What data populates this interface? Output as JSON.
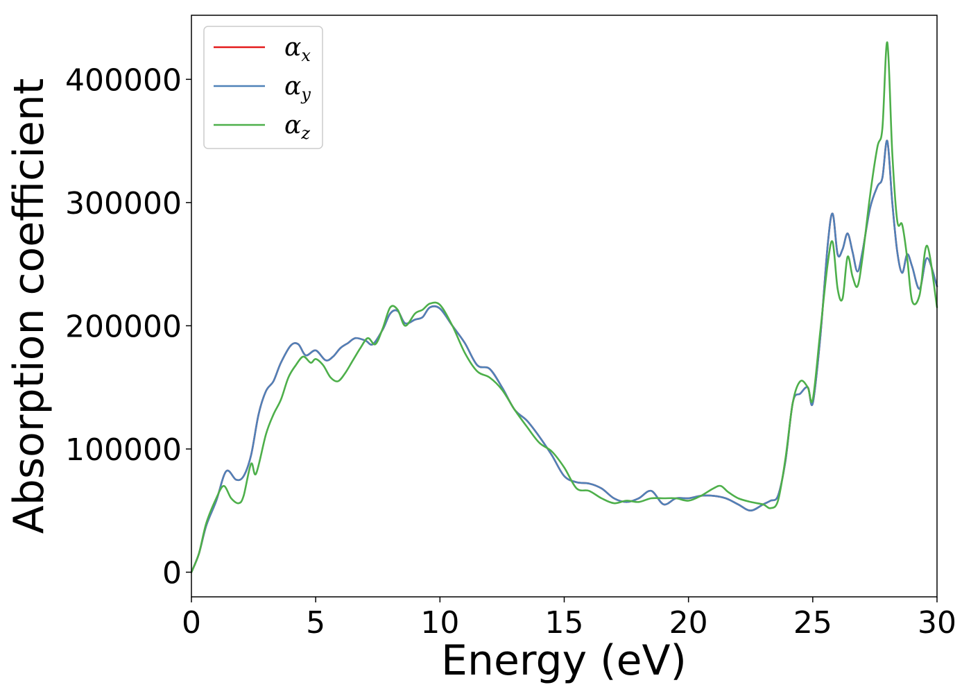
{
  "chart_data": {
    "type": "line",
    "title": "",
    "xlabel": "Energy (eV)",
    "ylabel": "Absorption coefficient",
    "xlim": [
      0,
      30
    ],
    "ylim": [
      -20000,
      452000
    ],
    "xticks": [
      0,
      5,
      10,
      15,
      20,
      25,
      30
    ],
    "yticks": [
      0,
      100000,
      200000,
      300000,
      400000
    ],
    "xtick_labels": [
      "0",
      "5",
      "10",
      "15",
      "20",
      "25",
      "30"
    ],
    "ytick_labels": [
      "0",
      "100000",
      "200000",
      "300000",
      "400000"
    ],
    "grid": false,
    "legend_position": "top-left",
    "series": [
      {
        "name": "αx",
        "label_base": "α",
        "label_sub": "x",
        "color": "#e41a1c",
        "x": [
          0,
          0.3,
          0.6,
          1.0,
          1.4,
          1.8,
          2.1,
          2.4,
          2.7,
          3.0,
          3.3,
          3.6,
          4.0,
          4.3,
          4.6,
          5.0,
          5.4,
          5.7,
          6.0,
          6.3,
          6.6,
          7.0,
          7.3,
          7.7,
          8.0,
          8.3,
          8.6,
          9.0,
          9.3,
          9.6,
          10.0,
          10.5,
          11.0,
          11.5,
          12.0,
          12.5,
          13.0,
          13.5,
          14.0,
          14.5,
          15.0,
          15.5,
          16.0,
          16.5,
          17.0,
          17.5,
          18.0,
          18.5,
          19.0,
          19.5,
          20.0,
          20.5,
          21.0,
          21.5,
          22.0,
          22.5,
          23.0,
          23.3,
          23.6,
          23.9,
          24.2,
          24.5,
          24.8,
          25.0,
          25.3,
          25.6,
          25.8,
          26.0,
          26.2,
          26.4,
          26.6,
          26.8,
          27.0,
          27.3,
          27.6,
          27.8,
          28.0,
          28.2,
          28.4,
          28.6,
          28.8,
          29.0,
          29.3,
          29.6,
          30.0
        ],
        "y": [
          0,
          15000,
          38000,
          58000,
          82000,
          75000,
          78000,
          95000,
          128000,
          147000,
          155000,
          170000,
          184000,
          185000,
          176000,
          180000,
          172000,
          175000,
          182000,
          186000,
          190000,
          188000,
          185000,
          197000,
          210000,
          212000,
          202000,
          205000,
          207000,
          215000,
          214000,
          200000,
          186000,
          168000,
          165000,
          150000,
          132000,
          123000,
          110000,
          95000,
          78000,
          73000,
          72000,
          68000,
          60000,
          57000,
          60000,
          66000,
          55000,
          60000,
          60000,
          62000,
          62000,
          60000,
          55000,
          50000,
          55000,
          58000,
          62000,
          90000,
          138000,
          145000,
          150000,
          137000,
          190000,
          265000,
          291000,
          258000,
          262000,
          275000,
          260000,
          244000,
          260000,
          295000,
          313000,
          320000,
          350000,
          300000,
          260000,
          243000,
          258000,
          248000,
          230000,
          255000,
          232000
        ]
      },
      {
        "name": "αy",
        "label_base": "α",
        "label_sub": "y",
        "color": "#4f81b8",
        "x": [
          0,
          0.3,
          0.6,
          1.0,
          1.4,
          1.8,
          2.1,
          2.4,
          2.7,
          3.0,
          3.3,
          3.6,
          4.0,
          4.3,
          4.6,
          5.0,
          5.4,
          5.7,
          6.0,
          6.3,
          6.6,
          7.0,
          7.3,
          7.7,
          8.0,
          8.3,
          8.6,
          9.0,
          9.3,
          9.6,
          10.0,
          10.5,
          11.0,
          11.5,
          12.0,
          12.5,
          13.0,
          13.5,
          14.0,
          14.5,
          15.0,
          15.5,
          16.0,
          16.5,
          17.0,
          17.5,
          18.0,
          18.5,
          19.0,
          19.5,
          20.0,
          20.5,
          21.0,
          21.5,
          22.0,
          22.5,
          23.0,
          23.3,
          23.6,
          23.9,
          24.2,
          24.5,
          24.8,
          25.0,
          25.3,
          25.6,
          25.8,
          26.0,
          26.2,
          26.4,
          26.6,
          26.8,
          27.0,
          27.3,
          27.6,
          27.8,
          28.0,
          28.2,
          28.4,
          28.6,
          28.8,
          29.0,
          29.3,
          29.6,
          30.0
        ],
        "y": [
          0,
          15000,
          38000,
          58000,
          82000,
          75000,
          78000,
          95000,
          128000,
          147000,
          155000,
          170000,
          184000,
          185000,
          176000,
          180000,
          172000,
          175000,
          182000,
          186000,
          190000,
          188000,
          185000,
          197000,
          210000,
          212000,
          202000,
          205000,
          207000,
          215000,
          214000,
          200000,
          186000,
          168000,
          165000,
          150000,
          132000,
          123000,
          110000,
          95000,
          78000,
          73000,
          72000,
          68000,
          60000,
          57000,
          60000,
          66000,
          55000,
          60000,
          60000,
          62000,
          62000,
          60000,
          55000,
          50000,
          55000,
          58000,
          62000,
          90000,
          138000,
          145000,
          150000,
          137000,
          190000,
          265000,
          291000,
          258000,
          262000,
          275000,
          260000,
          244000,
          260000,
          295000,
          313000,
          320000,
          350000,
          300000,
          260000,
          243000,
          258000,
          248000,
          230000,
          255000,
          232000
        ]
      },
      {
        "name": "αz",
        "label_base": "α",
        "label_sub": "z",
        "color": "#4daf4a",
        "x": [
          0,
          0.3,
          0.6,
          1.0,
          1.3,
          1.6,
          1.9,
          2.1,
          2.4,
          2.6,
          3.0,
          3.3,
          3.6,
          3.9,
          4.2,
          4.5,
          4.8,
          5.0,
          5.3,
          5.6,
          5.9,
          6.2,
          6.5,
          6.8,
          7.1,
          7.4,
          7.7,
          8.0,
          8.3,
          8.6,
          9.0,
          9.3,
          9.6,
          10.0,
          10.5,
          11.0,
          11.5,
          12.0,
          12.5,
          13.0,
          13.5,
          14.0,
          14.5,
          15.0,
          15.5,
          16.0,
          16.5,
          17.0,
          17.5,
          18.0,
          18.5,
          19.0,
          19.5,
          20.0,
          20.5,
          21.0,
          21.3,
          21.6,
          22.0,
          22.5,
          23.0,
          23.3,
          23.6,
          23.9,
          24.2,
          24.5,
          24.8,
          25.0,
          25.3,
          25.6,
          25.8,
          26.0,
          26.2,
          26.4,
          26.6,
          26.8,
          27.0,
          27.3,
          27.6,
          27.8,
          28.0,
          28.2,
          28.4,
          28.6,
          28.8,
          29.0,
          29.3,
          29.6,
          30.0
        ],
        "y": [
          0,
          15000,
          40000,
          60000,
          70000,
          60000,
          56000,
          62000,
          88000,
          80000,
          112000,
          128000,
          140000,
          158000,
          168000,
          175000,
          170000,
          173000,
          168000,
          158000,
          155000,
          162000,
          172000,
          182000,
          190000,
          185000,
          198000,
          215000,
          213000,
          200000,
          210000,
          213000,
          218000,
          217000,
          200000,
          178000,
          163000,
          158000,
          148000,
          132000,
          118000,
          105000,
          98000,
          85000,
          68000,
          66000,
          60000,
          56000,
          58000,
          57000,
          60000,
          60000,
          60000,
          58000,
          62000,
          68000,
          70000,
          65000,
          60000,
          57000,
          55000,
          52000,
          58000,
          92000,
          138000,
          155000,
          150000,
          140000,
          195000,
          250000,
          268000,
          230000,
          222000,
          256000,
          240000,
          232000,
          255000,
          305000,
          345000,
          360000,
          430000,
          340000,
          285000,
          282000,
          255000,
          220000,
          225000,
          265000,
          215000
        ]
      }
    ]
  }
}
